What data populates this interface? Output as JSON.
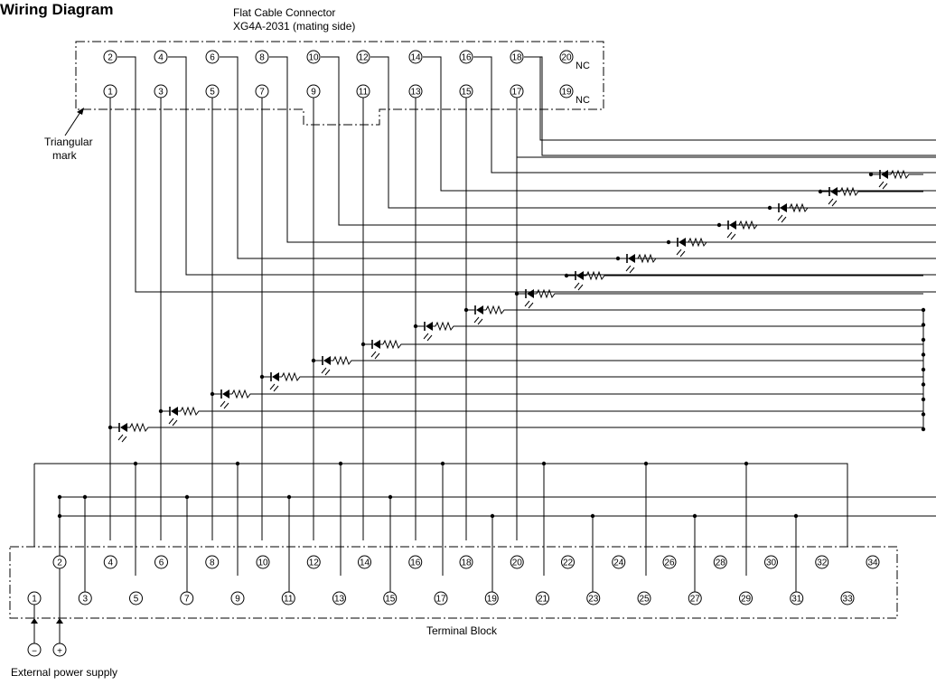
{
  "title": "Wiring Diagram",
  "connector": {
    "caption_line1": "Flat Cable Connector",
    "caption_line2": "XG4A-2031 (mating side)",
    "nc_label": "NC",
    "top_pins": [
      "2",
      "4",
      "6",
      "8",
      "10",
      "12",
      "14",
      "16",
      "18",
      "20"
    ],
    "bottom_pins": [
      "1",
      "3",
      "5",
      "7",
      "9",
      "11",
      "13",
      "15",
      "17",
      "19"
    ]
  },
  "triangular_mark_line1": "Triangular",
  "triangular_mark_line2": "mark",
  "terminal_block": {
    "label": "Terminal Block",
    "top_row": [
      "2",
      "4",
      "6",
      "8",
      "10",
      "12",
      "14",
      "16",
      "18",
      "20",
      "22",
      "24",
      "26",
      "28",
      "30",
      "32",
      "34"
    ],
    "bottom_row": [
      "1",
      "3",
      "5",
      "7",
      "9",
      "11",
      "13",
      "15",
      "17",
      "19",
      "21",
      "23",
      "25",
      "27",
      "29",
      "31",
      "33"
    ]
  },
  "power_supply": {
    "label": "External power supply",
    "minus_symbol": "−",
    "plus_symbol": "+"
  }
}
